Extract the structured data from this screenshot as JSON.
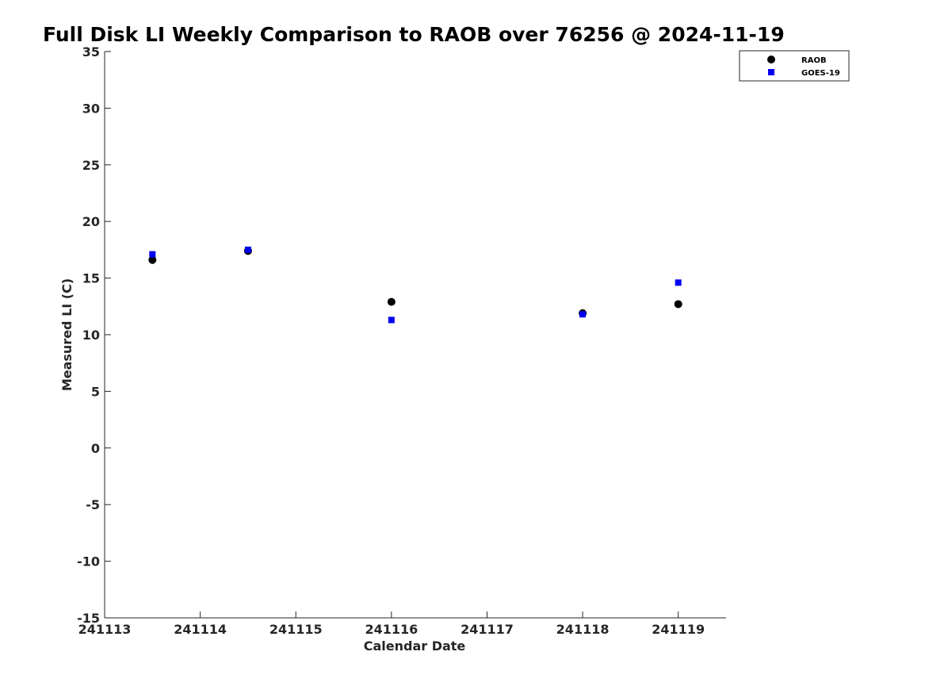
{
  "chart_data": {
    "type": "scatter",
    "title": "Full Disk LI Weekly Comparison to RAOB over 76256 @ 2024-11-19",
    "xlabel": "Calendar Date",
    "ylabel": "Measured LI (C)",
    "xlim": [
      0,
      6.5
    ],
    "ylim": [
      -15,
      35
    ],
    "x_ticks": [
      {
        "value": 0,
        "label": "241113"
      },
      {
        "value": 1,
        "label": "241114"
      },
      {
        "value": 2,
        "label": "241115"
      },
      {
        "value": 3,
        "label": "241116"
      },
      {
        "value": 4,
        "label": "241117"
      },
      {
        "value": 5,
        "label": "241118"
      },
      {
        "value": 6,
        "label": "241119"
      }
    ],
    "y_ticks": [
      35,
      30,
      25,
      20,
      15,
      10,
      5,
      0,
      -5,
      -10,
      -15
    ],
    "grid": false,
    "legend_position": "top-right",
    "series": [
      {
        "name": "RAOB",
        "marker": "circle",
        "color": "#000000",
        "points": [
          {
            "x": 0.5,
            "y": 16.6
          },
          {
            "x": 1.5,
            "y": 17.4
          },
          {
            "x": 3.0,
            "y": 12.9
          },
          {
            "x": 5.0,
            "y": 11.9
          },
          {
            "x": 6.0,
            "y": 12.7
          }
        ]
      },
      {
        "name": "GOES-19",
        "marker": "square",
        "color": "#0000ee",
        "points": [
          {
            "x": 0.5,
            "y": 17.1
          },
          {
            "x": 1.5,
            "y": 17.5
          },
          {
            "x": 3.0,
            "y": 11.3
          },
          {
            "x": 5.0,
            "y": 11.8
          },
          {
            "x": 6.0,
            "y": 14.6
          }
        ]
      }
    ]
  }
}
